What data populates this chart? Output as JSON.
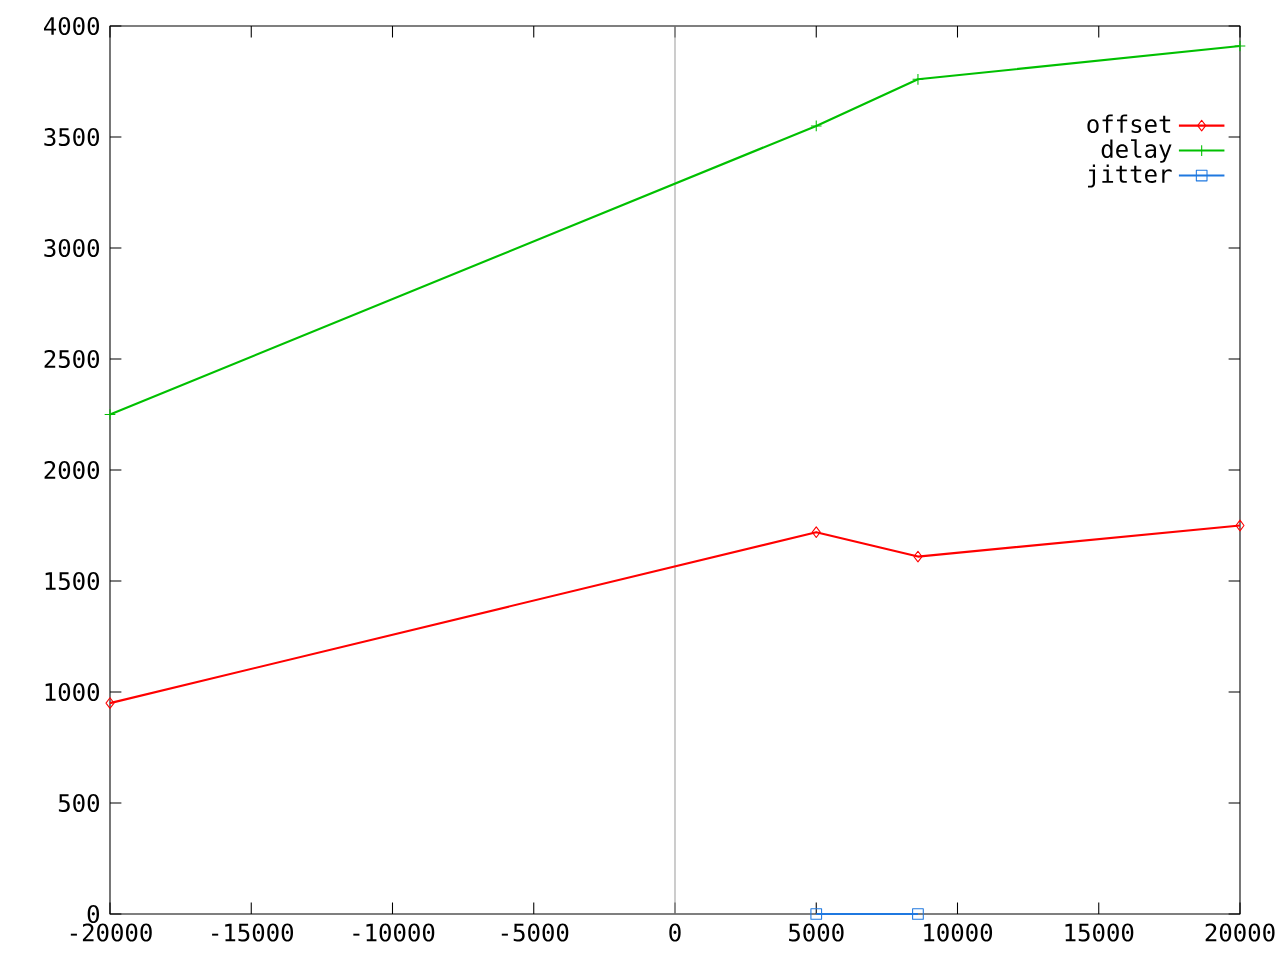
{
  "chart_data": {
    "type": "line",
    "x": [
      -20000,
      5000,
      8600,
      20000
    ],
    "series": [
      {
        "name": "offset",
        "color": "#ff0000",
        "marker": "diamond",
        "values": [
          950,
          1720,
          1610,
          1750
        ]
      },
      {
        "name": "delay",
        "color": "#00c000",
        "marker": "cross",
        "values": [
          2250,
          3550,
          3760,
          3910
        ]
      },
      {
        "name": "jitter",
        "color": "#1f78e0",
        "marker": "square",
        "x": [
          5000,
          8600
        ],
        "values": [
          0,
          0
        ]
      }
    ],
    "xlim": [
      -20000,
      20000
    ],
    "ylim": [
      0,
      4000
    ],
    "xticks": [
      -20000,
      -15000,
      -10000,
      -5000,
      0,
      5000,
      10000,
      15000,
      20000
    ],
    "yticks": [
      0,
      500,
      1000,
      1500,
      2000,
      2500,
      3000,
      3500,
      4000
    ],
    "ref_lines": [
      {
        "axis": "x",
        "value": 0,
        "color": "#a0a0a0"
      }
    ],
    "legend": "top right",
    "grid": false
  }
}
